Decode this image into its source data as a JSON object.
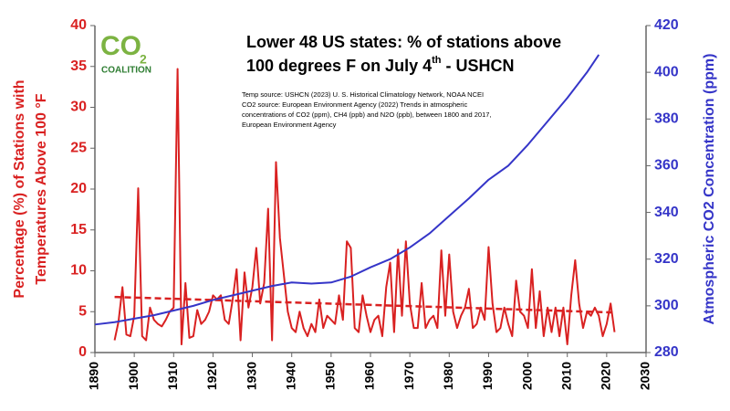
{
  "chart_data": {
    "type": "line",
    "title_line1": "Lower 48 US states: % of stations above",
    "title_line2_parts": [
      "100 degrees F on July 4",
      "th",
      " - USHCN"
    ],
    "logo": [
      "CO",
      "2",
      "COALITION"
    ],
    "source_lines": [
      "Temp source: USHCN (2023) U. S. Historical Climatology Network, NOAA NCEI",
      "CO2 source: European Environment Agency (2022)  Trends in atmospheric",
      "concentrations of CO2 (ppm), CH4 (ppb) and N2O (ppb), between 1800 and 2017,",
      "European Environment Agency"
    ],
    "y_label_lines": [
      "Percentage (%) of Stations with",
      "Temperatures Above 100 °F"
    ],
    "y2_label": "Atmospheric CO2 Concentration (ppm)",
    "xlim": [
      1890,
      2030
    ],
    "xticks": [
      1890,
      1900,
      1910,
      1920,
      1930,
      1940,
      1950,
      1960,
      1970,
      1980,
      1990,
      2000,
      2010,
      2020,
      2030
    ],
    "ylim": [
      0,
      40
    ],
    "yticks": [
      0,
      5,
      10,
      15,
      20,
      25,
      30,
      35,
      40
    ],
    "y2lim": [
      280,
      420
    ],
    "y2ticks": [
      280,
      300,
      320,
      340,
      360,
      380,
      400,
      420
    ],
    "left_color": "#d92121",
    "right_color": "#3535c8",
    "series": [
      {
        "color": "#d92121",
        "width": 2,
        "x": [
          1895,
          1896,
          1897,
          1898,
          1899,
          1900,
          1901,
          1902,
          1903,
          1904,
          1905,
          1906,
          1907,
          1908,
          1909,
          1910,
          1911,
          1912,
          1913,
          1914,
          1915,
          1916,
          1917,
          1918,
          1919,
          1920,
          1921,
          1922,
          1923,
          1924,
          1925,
          1926,
          1927,
          1928,
          1929,
          1930,
          1931,
          1932,
          1933,
          1934,
          1935,
          1936,
          1937,
          1938,
          1939,
          1940,
          1941,
          1942,
          1943,
          1944,
          1945,
          1946,
          1947,
          1948,
          1949,
          1950,
          1951,
          1952,
          1953,
          1954,
          1955,
          1956,
          1957,
          1958,
          1959,
          1960,
          1961,
          1962,
          1963,
          1964,
          1965,
          1966,
          1967,
          1968,
          1969,
          1970,
          1971,
          1972,
          1973,
          1974,
          1975,
          1976,
          1977,
          1978,
          1979,
          1980,
          1981,
          1982,
          1983,
          1984,
          1985,
          1986,
          1987,
          1988,
          1989,
          1990,
          1991,
          1992,
          1993,
          1994,
          1995,
          1996,
          1997,
          1998,
          1999,
          2000,
          2001,
          2002,
          2003,
          2004,
          2005,
          2006,
          2007,
          2008,
          2009,
          2010,
          2011,
          2012,
          2013,
          2014,
          2015,
          2016,
          2017,
          2018,
          2019,
          2020,
          2021,
          2022
        ],
        "values": [
          1.5,
          3.8,
          8.0,
          2.2,
          2.0,
          4.5,
          20.1,
          2.0,
          1.5,
          5.5,
          4.0,
          3.5,
          3.2,
          4.0,
          5.0,
          5.5,
          34.7,
          1.0,
          8.5,
          1.8,
          2.0,
          5.2,
          3.5,
          4.0,
          5.0,
          7.0,
          6.5,
          7.0,
          4.0,
          3.5,
          6.5,
          10.2,
          1.5,
          9.8,
          5.5,
          8.0,
          12.8,
          6.0,
          8.5,
          17.6,
          1.5,
          23.3,
          14.0,
          9.5,
          5.0,
          3.0,
          2.5,
          5.0,
          3.0,
          2.0,
          3.5,
          2.5,
          6.5,
          3.0,
          4.5,
          4.0,
          3.5,
          7.0,
          4.0,
          13.6,
          12.8,
          3.0,
          2.5,
          7.0,
          4.5,
          2.5,
          4.0,
          4.5,
          2.0,
          8.0,
          11.0,
          2.5,
          12.6,
          4.5,
          13.6,
          6.0,
          3.0,
          3.0,
          8.5,
          3.0,
          4.0,
          4.5,
          3.0,
          12.5,
          4.5,
          12.0,
          5.0,
          3.0,
          4.5,
          5.5,
          7.8,
          3.0,
          3.5,
          5.5,
          4.0,
          12.9,
          6.0,
          2.5,
          3.0,
          5.5,
          3.5,
          2.0,
          8.8,
          5.0,
          4.5,
          3.0,
          10.2,
          3.0,
          7.5,
          2.0,
          5.5,
          2.5,
          5.5,
          2.0,
          5.5,
          1.0,
          7.0,
          11.3,
          6.0,
          3.0,
          5.0,
          4.5,
          5.5,
          4.5,
          2.0,
          3.5,
          6.0,
          2.5
        ]
      },
      {
        "color": "#d92121",
        "width": 2.5,
        "dash": true,
        "x": [
          1895,
          2022
        ],
        "values": [
          6.8,
          4.9
        ]
      },
      {
        "color": "#3535c8",
        "width": 2,
        "axis": "y2",
        "x": [
          1890,
          1895,
          1900,
          1905,
          1910,
          1915,
          1920,
          1925,
          1930,
          1935,
          1940,
          1945,
          1950,
          1955,
          1960,
          1965,
          1970,
          1975,
          1980,
          1985,
          1990,
          1995,
          2000,
          2005,
          2010,
          2015,
          2018
        ],
        "values": [
          292,
          293,
          294.5,
          296,
          298,
          300,
          302.5,
          304.5,
          306.5,
          308.5,
          310,
          309.5,
          310,
          312.5,
          316.5,
          320,
          325,
          331,
          338.5,
          346,
          354,
          360,
          369,
          379,
          389,
          400,
          407.5
        ]
      }
    ]
  }
}
